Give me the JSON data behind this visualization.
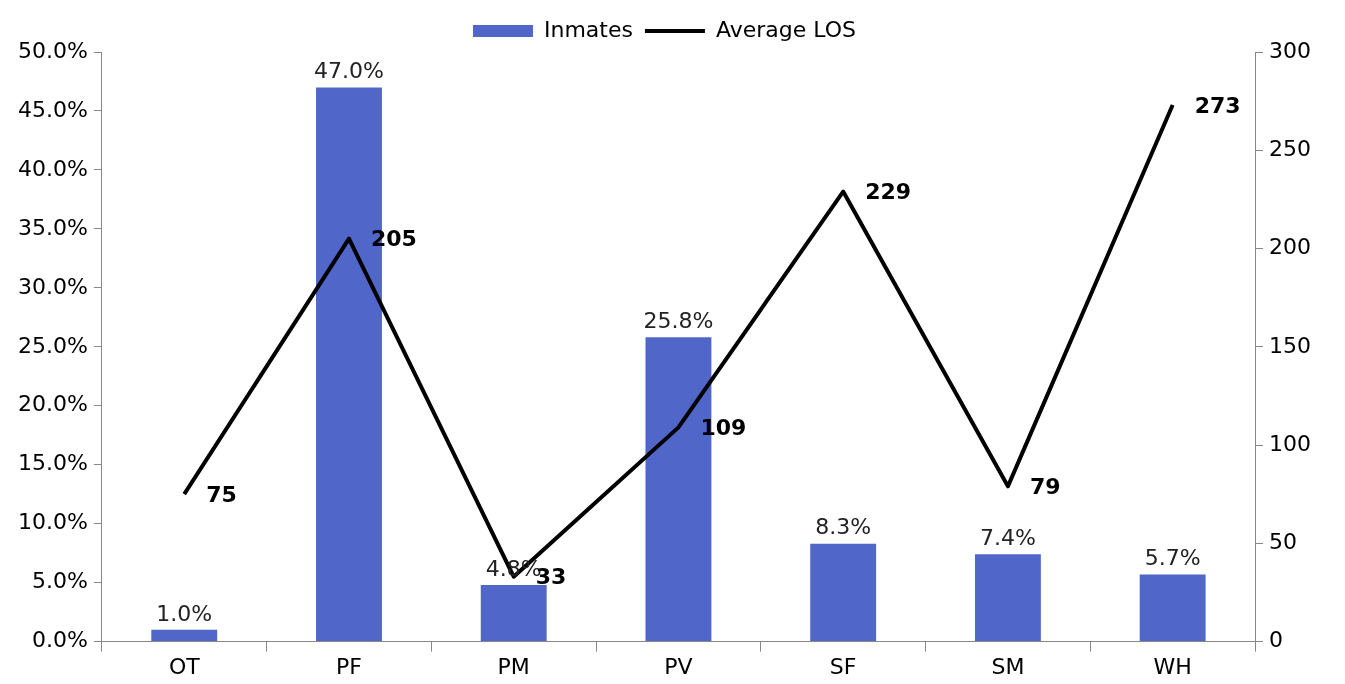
{
  "chart_data": {
    "type": "bar",
    "categories": [
      "OT",
      "PF",
      "PM",
      "PV",
      "SF",
      "SM",
      "WH"
    ],
    "series": [
      {
        "name": "Inmates",
        "color": "#5066c8",
        "values": [
          1.0,
          47.0,
          4.8,
          25.8,
          8.3,
          7.4,
          5.7
        ],
        "value_labels": [
          "1.0%",
          "47.0%",
          "4.8%",
          "25.8%",
          "8.3%",
          "7.4%",
          "5.7%"
        ]
      },
      {
        "name": "Average LOS",
        "type": "line",
        "axis": "y2",
        "color": "#000000",
        "values": [
          75,
          205,
          33,
          109,
          229,
          79,
          273
        ],
        "value_labels": [
          "75",
          "205",
          "33",
          "109",
          "229",
          "79",
          "273"
        ]
      }
    ],
    "ylim": [
      0,
      50
    ],
    "yticks": [
      {
        "value": 0,
        "label": "0.0%"
      },
      {
        "value": 5,
        "label": "5.0%"
      },
      {
        "value": 10,
        "label": "10.0%"
      },
      {
        "value": 15,
        "label": "15.0%"
      },
      {
        "value": 20,
        "label": "20.0%"
      },
      {
        "value": 25,
        "label": "25.0%"
      },
      {
        "value": 30,
        "label": "30.0%"
      },
      {
        "value": 35,
        "label": "35.0%"
      },
      {
        "value": 40,
        "label": "40.0%"
      },
      {
        "value": 45,
        "label": "45.0%"
      },
      {
        "value": 50,
        "label": "50.0%"
      }
    ],
    "y2lim": [
      0,
      300
    ],
    "y2ticks": [
      0,
      50,
      100,
      150,
      200,
      250,
      300
    ],
    "legend": "top",
    "grid": false,
    "marker": "none"
  }
}
